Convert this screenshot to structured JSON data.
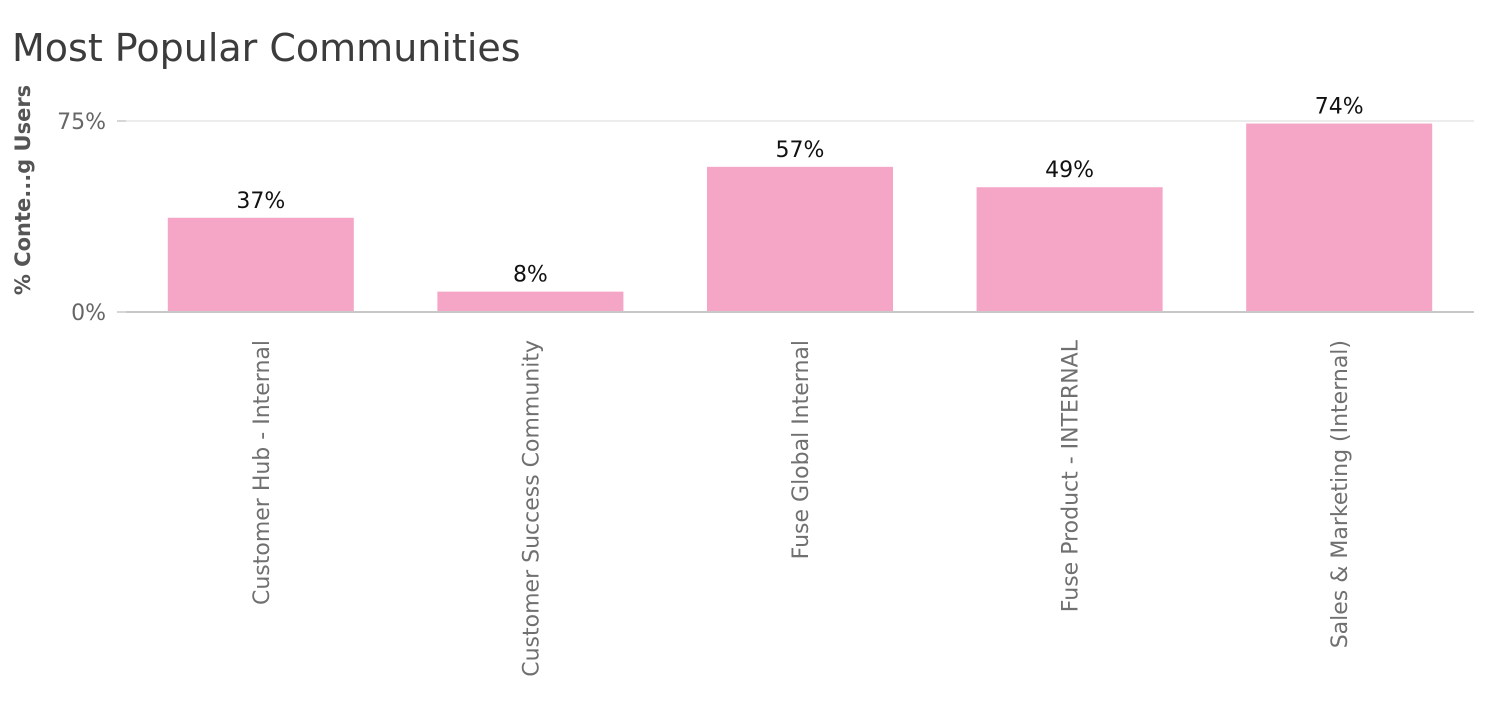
{
  "chart_data": {
    "type": "bar",
    "title": "Most Popular Communities",
    "xlabel": "",
    "ylabel": "% Conte...g Users",
    "categories": [
      "Customer Hub - Internal",
      "Customer Success Community",
      "Fuse Global Internal",
      "Fuse Product - INTERNAL",
      "Sales & Marketing (Internal)"
    ],
    "values": [
      37,
      8,
      57,
      49,
      74
    ],
    "value_labels": [
      "37%",
      "8%",
      "57%",
      "49%",
      "74%"
    ],
    "ylim": [
      0,
      75
    ],
    "yticks": [
      0,
      75
    ],
    "ytick_labels": [
      "0%",
      "75%"
    ],
    "grid": true,
    "legend": "none",
    "colors": {
      "bar": "#f5a6c6",
      "grid": "#e6e6e6",
      "axis": "#c8c8c8"
    }
  }
}
